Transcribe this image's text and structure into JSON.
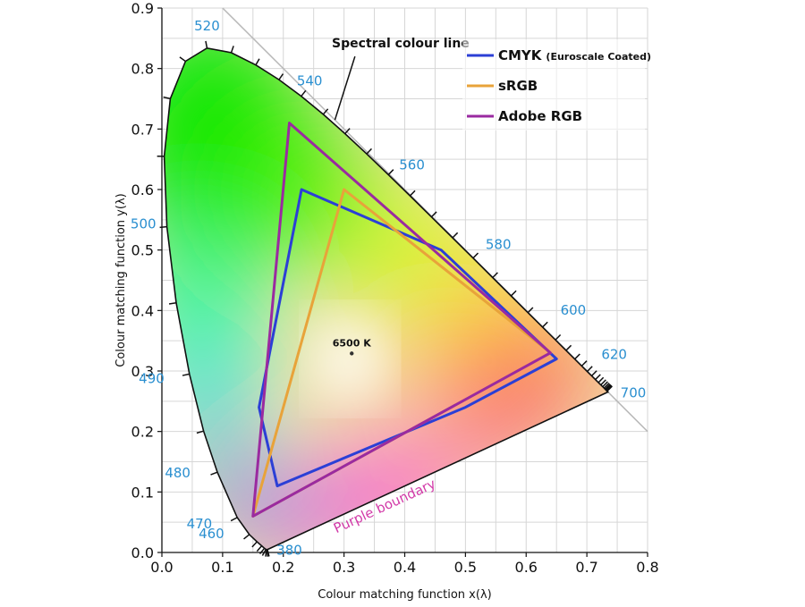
{
  "chart_data": {
    "type": "scatter",
    "xlabel": "Colour matching function x(λ)",
    "ylabel": "Colour matching function y(λ)",
    "xlim": [
      0,
      0.8
    ],
    "ylim": [
      0,
      0.9
    ],
    "grid": true,
    "legend_position": "top-right",
    "x_ticks": [
      "0.0",
      "0.1",
      "0.2",
      "0.3",
      "0.4",
      "0.5",
      "0.6",
      "0.7",
      "0.8"
    ],
    "y_ticks": [
      "0.0",
      "0.1",
      "0.2",
      "0.3",
      "0.4",
      "0.5",
      "0.6",
      "0.7",
      "0.8",
      "0.9"
    ],
    "spectral_locus": {
      "x": [
        0.1741,
        0.1738,
        0.1733,
        0.1726,
        0.1714,
        0.1689,
        0.1644,
        0.1566,
        0.144,
        0.1241,
        0.0913,
        0.0687,
        0.0454,
        0.0235,
        0.0082,
        0.0039,
        0.0139,
        0.0389,
        0.0743,
        0.1142,
        0.1547,
        0.1929,
        0.2296,
        0.2658,
        0.3016,
        0.3373,
        0.3731,
        0.4087,
        0.4441,
        0.4788,
        0.5125,
        0.5448,
        0.5752,
        0.6029,
        0.627,
        0.6482,
        0.6658,
        0.6801,
        0.6915,
        0.7006,
        0.7079,
        0.714,
        0.719,
        0.723,
        0.726,
        0.7283,
        0.73,
        0.7311,
        0.732,
        0.7327,
        0.7334,
        0.7347
      ],
      "y": [
        0.005,
        0.0049,
        0.0048,
        0.0048,
        0.0051,
        0.0069,
        0.0109,
        0.0177,
        0.0297,
        0.0578,
        0.1327,
        0.2007,
        0.295,
        0.4127,
        0.5384,
        0.6548,
        0.7502,
        0.812,
        0.8338,
        0.8262,
        0.8059,
        0.7816,
        0.7543,
        0.7243,
        0.6923,
        0.6589,
        0.6245,
        0.5896,
        0.5547,
        0.5202,
        0.4866,
        0.4544,
        0.4242,
        0.3965,
        0.3725,
        0.3514,
        0.334,
        0.3197,
        0.3083,
        0.2993,
        0.292,
        0.2859,
        0.2809,
        0.277,
        0.274,
        0.2717,
        0.27,
        0.2689,
        0.268,
        0.2673,
        0.2666,
        0.2653
      ]
    },
    "wavelength_labels": [
      {
        "text": "380",
        "x": 0.1741,
        "y": 0.005
      },
      {
        "text": "460",
        "x": 0.144,
        "y": 0.0297
      },
      {
        "text": "470",
        "x": 0.1241,
        "y": 0.0578
      },
      {
        "text": "480",
        "x": 0.0913,
        "y": 0.1327
      },
      {
        "text": "490",
        "x": 0.0454,
        "y": 0.295
      },
      {
        "text": "500",
        "x": 0.0082,
        "y": 0.5384
      },
      {
        "text": "520",
        "x": 0.0743,
        "y": 0.8338
      },
      {
        "text": "540",
        "x": 0.2296,
        "y": 0.7543
      },
      {
        "text": "560",
        "x": 0.3731,
        "y": 0.6245
      },
      {
        "text": "580",
        "x": 0.5125,
        "y": 0.4866
      },
      {
        "text": "600",
        "x": 0.627,
        "y": 0.3725
      },
      {
        "text": "620",
        "x": 0.6915,
        "y": 0.3083
      },
      {
        "text": "700",
        "x": 0.7347,
        "y": 0.2653
      }
    ],
    "series": [
      {
        "name": "CMYK",
        "name_suffix": "(Euroscale Coated)",
        "color": "#2b3fd6",
        "x": [
          0.23,
          0.46,
          0.65,
          0.5,
          0.19,
          0.16
        ],
        "y": [
          0.6,
          0.5,
          0.32,
          0.24,
          0.11,
          0.24
        ]
      },
      {
        "name": "sRGB",
        "color": "#e8a33a",
        "x": [
          0.64,
          0.3,
          0.15
        ],
        "y": [
          0.33,
          0.6,
          0.06
        ]
      },
      {
        "name": "Adobe RGB",
        "color": "#9a2aa0",
        "x": [
          0.64,
          0.21,
          0.15
        ],
        "y": [
          0.33,
          0.71,
          0.06
        ]
      }
    ],
    "white_point": {
      "label": "6500 K",
      "x": 0.3127,
      "y": 0.329
    },
    "annotations": {
      "spectral_line": {
        "text": "Spectral colour line",
        "x": 0.28,
        "y": 0.835
      },
      "purple_boundary": {
        "text": "Purple boundary"
      }
    },
    "colors": {
      "grid": "#d6d6d6",
      "wavelength_label": "#2a8fd0",
      "purple_label": "#d23aa8",
      "diagonal": "#b8b8b8"
    }
  }
}
